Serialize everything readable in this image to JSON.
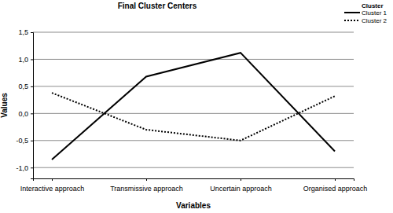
{
  "chart_data": {
    "type": "line",
    "title": "Final Cluster Centers",
    "x_label": "Variables",
    "y_label": "Values",
    "categories": [
      "Interactive approach",
      "Transmissive approach",
      "Uncertain approach",
      "Organised approach"
    ],
    "series": [
      {
        "name": "Cluster 1",
        "color": "#000000",
        "line_style": "solid",
        "values": [
          -0.85,
          0.68,
          1.12,
          -0.7
        ]
      },
      {
        "name": "Cluster 2",
        "color": "#000000",
        "line_style": "dotted",
        "values": [
          0.38,
          -0.3,
          -0.5,
          0.32
        ]
      }
    ],
    "ylim": [
      -1.2,
      1.5
    ],
    "yticks": [
      {
        "value": -1,
        "label": "-1,0"
      },
      {
        "value": -0.5,
        "label": "-0,5"
      },
      {
        "value": 0,
        "label": "0,0"
      },
      {
        "value": 0.5,
        "label": "0,5"
      },
      {
        "value": 1,
        "label": "1,0"
      },
      {
        "value": 1.5,
        "label": "1,5"
      }
    ],
    "grid": true,
    "legend": "top-right",
    "legend_title": "Cluster"
  }
}
